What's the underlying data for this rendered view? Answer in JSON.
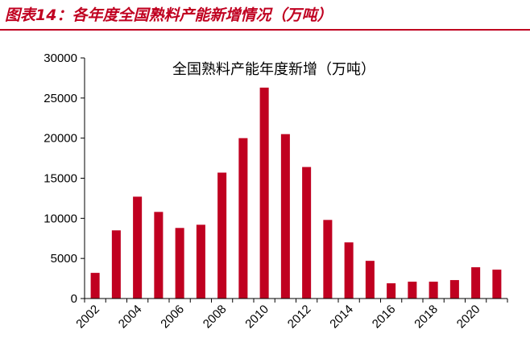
{
  "figure_title": "图表14：各年度全国熟料产能新增情况（万吨）",
  "chart_data": {
    "type": "bar",
    "title": "全国熟料产能年度新增（万吨）",
    "xlabel": "",
    "ylabel": "",
    "categories": [
      "2002",
      "2003",
      "2004",
      "2005",
      "2006",
      "2007",
      "2008",
      "2009",
      "2010",
      "2011",
      "2012",
      "2013",
      "2014",
      "2015",
      "2016",
      "2017",
      "2018",
      "2019",
      "2020",
      "2021"
    ],
    "values": [
      3200,
      8500,
      12700,
      10800,
      8800,
      9200,
      15700,
      20000,
      26300,
      20500,
      16400,
      9800,
      7000,
      4700,
      1900,
      2100,
      2100,
      2300,
      3900,
      3600
    ],
    "ylim": [
      0,
      30000
    ],
    "yticks": [
      0,
      5000,
      10000,
      15000,
      20000,
      25000,
      30000
    ],
    "xtick_labels": [
      "2002",
      "2004",
      "2006",
      "2008",
      "2010",
      "2012",
      "2014",
      "2016",
      "2018",
      "2020"
    ],
    "bar_color": "#c00020",
    "grid": false,
    "legend": "none"
  }
}
